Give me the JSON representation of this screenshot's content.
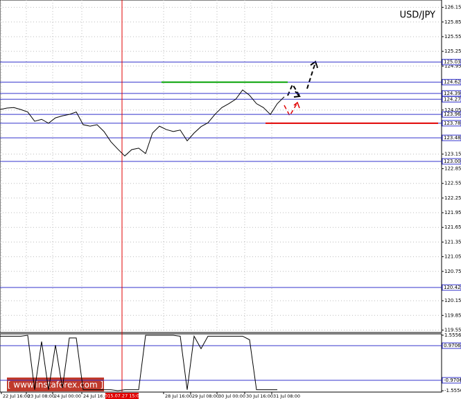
{
  "chart_data": [
    {
      "type": "line",
      "title": "USD/JPY",
      "color": "#000000",
      "grid": true,
      "x": [
        0,
        1,
        2,
        3,
        4,
        5,
        6,
        7,
        8,
        9,
        10,
        11,
        12,
        13,
        14,
        15,
        16,
        17,
        18,
        19,
        20,
        21,
        22,
        23,
        24,
        25,
        26,
        27,
        28,
        29,
        30,
        31,
        32,
        33,
        34,
        35,
        36,
        37,
        38,
        39,
        40,
        41
      ],
      "values": [
        124.06,
        124.09,
        124.1,
        124.06,
        124.01,
        123.82,
        123.86,
        123.78,
        123.89,
        123.93,
        123.96,
        124.01,
        123.75,
        123.72,
        123.75,
        123.61,
        123.4,
        123.25,
        123.11,
        123.24,
        123.27,
        123.16,
        123.58,
        123.72,
        123.65,
        123.61,
        123.64,
        123.42,
        123.58,
        123.71,
        123.79,
        123.96,
        124.1,
        124.18,
        124.27,
        124.46,
        124.35,
        124.18,
        124.1,
        123.96,
        124.18,
        124.32
      ],
      "xlim": [
        0,
        63.7
      ],
      "xticks": [
        {
          "value": 0.2,
          "label": "22 Jul 16:00"
        },
        {
          "value": 3.8,
          "label": "23 Jul 08:00"
        },
        {
          "value": 7.6,
          "label": "24 Jul 00:00"
        },
        {
          "value": 11.8,
          "label": "24 Jul 16:00"
        },
        {
          "value": 17.6,
          "label": "2015.07.27 15:00"
        },
        {
          "value": 23.6,
          "label": "28 Jul 16:00"
        },
        {
          "value": 27.5,
          "label": "29 Jul 08:00"
        },
        {
          "value": 31.3,
          "label": "30 Jul 00:00"
        },
        {
          "value": 35.3,
          "label": "30 Jul 16:00"
        },
        {
          "value": 39.2,
          "label": "31 Jul 08:00"
        }
      ],
      "ylim": [
        119.5,
        126.3
      ],
      "yticks": [
        119.55,
        119.85,
        120.15,
        120.75,
        121.05,
        121.35,
        121.65,
        121.95,
        122.25,
        122.55,
        122.85,
        123.15,
        124.05,
        124.95,
        125.25,
        125.55,
        125.85,
        126.15
      ],
      "levels": [
        125.03,
        124.62,
        124.39,
        124.27,
        123.96,
        123.78,
        123.48,
        {
          "value": 123,
          "label": "123.00"
        },
        120.42
      ],
      "level_color": "#3333cc",
      "resistance": {
        "value": 124.62,
        "color": "#00a000"
      },
      "support": {
        "value": 123.78,
        "color": "#e00000"
      }
    },
    {
      "type": "line",
      "color": "#000000",
      "x": [
        0,
        1,
        2,
        3,
        4,
        5,
        6,
        7,
        8,
        9,
        10,
        11,
        12,
        13,
        14,
        15,
        16,
        17,
        18,
        19,
        20,
        21,
        22,
        23,
        24,
        25,
        26,
        27,
        28,
        29,
        30,
        31,
        32,
        33,
        34,
        35,
        36,
        37,
        38,
        39,
        40
      ],
      "values": [
        1.5,
        1.5,
        1.5,
        1.5,
        1.55,
        -1.5,
        1.2,
        -1.5,
        1.0,
        -1.4,
        1.4,
        1.4,
        -1.5,
        -1.5,
        -1.5,
        -1.5,
        -1.5,
        -1.55,
        -1.5,
        -1.5,
        -1.5,
        1.55,
        1.55,
        1.55,
        1.55,
        1.55,
        1.5,
        -1.5,
        1.5,
        0.8,
        1.5,
        1.5,
        1.5,
        1.5,
        1.5,
        1.5,
        1.3,
        -1.5,
        -1.5,
        -1.5,
        -1.5
      ],
      "xlim": [
        0,
        63.7
      ],
      "ylim": [
        -1.63,
        1.63
      ],
      "yticks": [
        1.5556,
        0.9706,
        -0.9706,
        -1.5556
      ],
      "levels": [
        0.9706,
        -0.9706
      ],
      "level_color": "#3333cc"
    }
  ],
  "watermark": "[ www.instaforex.com ]"
}
